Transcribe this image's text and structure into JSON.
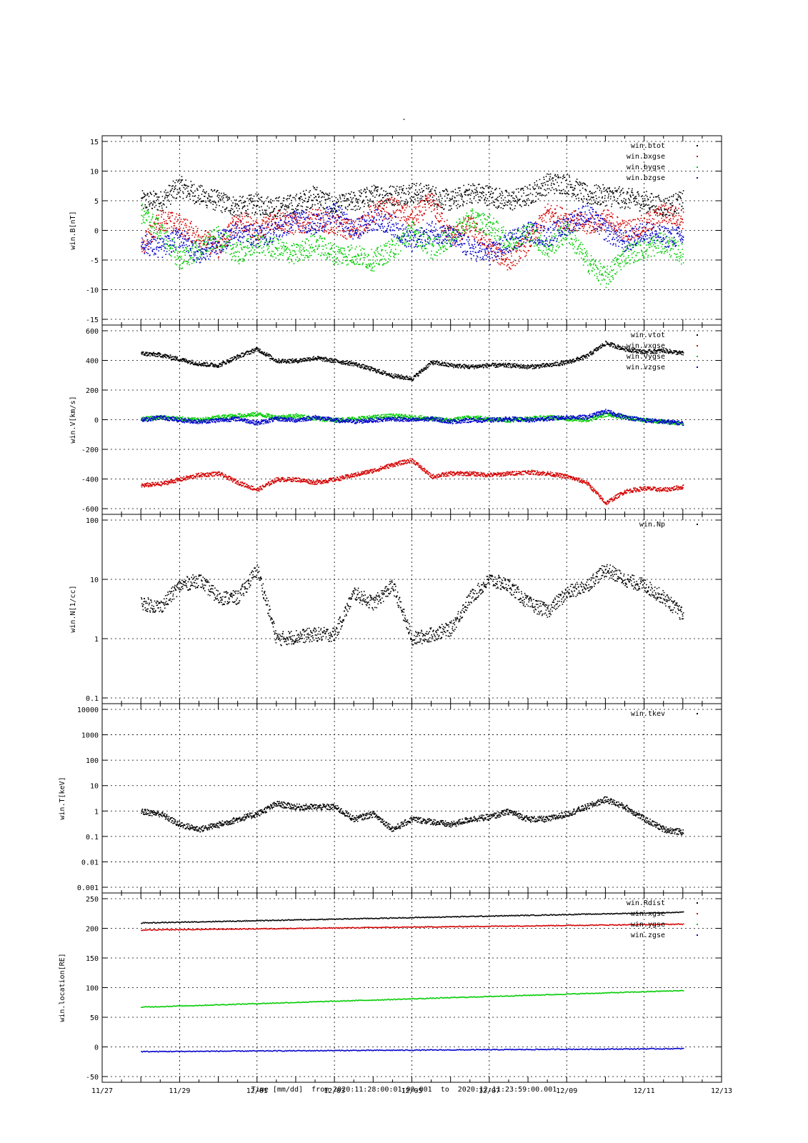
{
  "page_title": "-",
  "footer": {
    "xlabel": "Time [mm/dd]",
    "from_label": "from",
    "from_value": "2020:11:28:00:01:00.001",
    "to_label": "to",
    "to_value": "2020:12:11:23:59:00.001"
  },
  "colors": {
    "black": "#000000",
    "red": "#d40000",
    "green": "#00cc00",
    "blue": "#0000cc"
  },
  "chart_data": [
    {
      "type": "scatter",
      "ylabel": "win.B[nT]",
      "yscale": "linear",
      "ylim": [
        -15,
        15
      ],
      "yticks": [
        -15,
        -10,
        -5,
        0,
        5,
        10,
        15
      ],
      "legend_position": "top-right",
      "grid": true,
      "series": [
        {
          "name": "win.btot",
          "color": "black",
          "x": [
            0.0,
            0.5,
            1.0,
            1.5,
            2.0,
            2.5,
            3.0,
            3.5,
            4.0,
            4.5,
            5.0,
            5.5,
            6.0,
            6.5,
            7.0,
            7.5,
            8.0,
            8.5,
            9.0,
            9.5,
            10.0,
            10.5,
            11.0,
            11.5,
            12.0,
            12.5,
            13.0,
            13.5,
            14.0
          ],
          "y": [
            5,
            5,
            7.5,
            6,
            5,
            4,
            4.5,
            4,
            4.5,
            6,
            4,
            5,
            6,
            6,
            6.5,
            6,
            5,
            6.5,
            6,
            5,
            6,
            8,
            8,
            6,
            6,
            5.5,
            5,
            4,
            5
          ]
        },
        {
          "name": "win.bxgse",
          "color": "red",
          "x": [
            0.0,
            0.5,
            1.0,
            1.5,
            2.0,
            2.5,
            3.0,
            3.5,
            4.0,
            4.5,
            5.0,
            5.5,
            6.0,
            6.5,
            7.0,
            7.5,
            8.0,
            8.5,
            9.0,
            9.5,
            10.0,
            10.5,
            11.0,
            11.5,
            12.0,
            12.5,
            13.0,
            13.5,
            14.0
          ],
          "y": [
            -3,
            2,
            1,
            -1,
            -3,
            2,
            0,
            2,
            1,
            2,
            1,
            0,
            3,
            4,
            2,
            5,
            -1,
            1,
            -3,
            -5,
            -2,
            3,
            2,
            1,
            2,
            0,
            1,
            3,
            2
          ]
        },
        {
          "name": "win.bygse",
          "color": "green",
          "x": [
            0.0,
            0.5,
            1.0,
            1.5,
            2.0,
            2.5,
            3.0,
            3.5,
            4.0,
            4.5,
            5.0,
            5.5,
            6.0,
            6.5,
            7.0,
            7.5,
            8.0,
            8.5,
            9.0,
            9.5,
            10.0,
            10.5,
            11.0,
            11.5,
            12.0,
            12.5,
            13.0,
            13.5,
            14.0
          ],
          "y": [
            3,
            0,
            -5,
            -3,
            -1,
            -4,
            -2,
            -3,
            -4,
            -2,
            -4,
            -4,
            -5,
            -3,
            0,
            -3,
            -1,
            2,
            1,
            -2,
            0,
            -3,
            0,
            -5,
            -8,
            -4,
            -3,
            -2,
            -4
          ]
        },
        {
          "name": "win.bzgse",
          "color": "blue",
          "x": [
            0.0,
            0.5,
            1.0,
            1.5,
            2.0,
            2.5,
            3.0,
            3.5,
            4.0,
            4.5,
            5.0,
            5.5,
            6.0,
            6.5,
            7.0,
            7.5,
            8.0,
            8.5,
            9.0,
            9.5,
            10.0,
            10.5,
            11.0,
            11.5,
            12.0,
            12.5,
            13.0,
            13.5,
            14.0
          ],
          "y": [
            -2,
            -3,
            -1,
            -4,
            -2,
            0,
            -1,
            0,
            2,
            1,
            3,
            0,
            2,
            1,
            -2,
            0,
            -1,
            -3,
            -4,
            -2,
            0,
            -1,
            1,
            3,
            0,
            -2,
            0,
            -1,
            -1
          ]
        }
      ]
    },
    {
      "type": "scatter",
      "ylabel": "win.V[km/s]",
      "yscale": "linear",
      "ylim": [
        -600,
        600
      ],
      "yticks": [
        -600,
        -400,
        -200,
        0,
        200,
        400,
        600
      ],
      "legend_position": "top-right",
      "grid": true,
      "series": [
        {
          "name": "win.vtot",
          "color": "black",
          "x": [
            0.0,
            0.5,
            1.0,
            1.5,
            2.0,
            2.5,
            3.0,
            3.5,
            4.0,
            4.5,
            5.0,
            5.5,
            6.0,
            6.5,
            7.0,
            7.5,
            8.0,
            8.5,
            9.0,
            9.5,
            10.0,
            10.5,
            11.0,
            11.5,
            12.0,
            12.5,
            13.0,
            13.5,
            14.0
          ],
          "y": [
            450,
            440,
            410,
            380,
            370,
            430,
            480,
            400,
            400,
            420,
            400,
            380,
            340,
            300,
            280,
            390,
            370,
            360,
            370,
            370,
            360,
            370,
            390,
            430,
            520,
            480,
            460,
            470,
            450
          ]
        },
        {
          "name": "win.vxgse",
          "color": "red",
          "x": [
            0.0,
            0.5,
            1.0,
            1.5,
            2.0,
            2.5,
            3.0,
            3.5,
            4.0,
            4.5,
            5.0,
            5.5,
            6.0,
            6.5,
            7.0,
            7.5,
            8.0,
            8.5,
            9.0,
            9.5,
            10.0,
            10.5,
            11.0,
            11.5,
            12.0,
            12.5,
            13.0,
            13.5,
            14.0
          ],
          "y": [
            -440,
            -430,
            -400,
            -370,
            -360,
            -420,
            -470,
            -400,
            -400,
            -420,
            -400,
            -370,
            -340,
            -300,
            -270,
            -380,
            -360,
            -360,
            -370,
            -360,
            -350,
            -360,
            -380,
            -420,
            -560,
            -480,
            -460,
            -470,
            -450
          ]
        },
        {
          "name": "win.vygse",
          "color": "green",
          "x": [
            0.0,
            0.5,
            1.0,
            1.5,
            2.0,
            2.5,
            3.0,
            3.5,
            4.0,
            4.5,
            5.0,
            5.5,
            6.0,
            6.5,
            7.0,
            7.5,
            8.0,
            8.5,
            9.0,
            9.5,
            10.0,
            10.5,
            11.0,
            11.5,
            12.0,
            12.5,
            13.0,
            13.5,
            14.0
          ],
          "y": [
            10,
            20,
            10,
            0,
            20,
            30,
            40,
            20,
            30,
            10,
            0,
            10,
            20,
            30,
            20,
            10,
            0,
            20,
            10,
            0,
            10,
            20,
            10,
            0,
            40,
            20,
            0,
            -10,
            -20
          ]
        },
        {
          "name": "win.vzgse",
          "color": "blue",
          "x": [
            0.0,
            0.5,
            1.0,
            1.5,
            2.0,
            2.5,
            3.0,
            3.5,
            4.0,
            4.5,
            5.0,
            5.5,
            6.0,
            6.5,
            7.0,
            7.5,
            8.0,
            8.5,
            9.0,
            9.5,
            10.0,
            10.5,
            11.0,
            11.5,
            12.0,
            12.5,
            13.0,
            13.5,
            14.0
          ],
          "y": [
            0,
            20,
            0,
            -10,
            0,
            10,
            -20,
            10,
            0,
            20,
            0,
            -10,
            0,
            10,
            0,
            10,
            -10,
            0,
            0,
            10,
            0,
            10,
            20,
            20,
            60,
            20,
            0,
            -10,
            -20
          ]
        }
      ]
    },
    {
      "type": "scatter",
      "ylabel": "win.N[1/cc]",
      "yscale": "log",
      "ylim": [
        0.1,
        100
      ],
      "yticks": [
        0.1,
        1,
        10,
        100
      ],
      "ytick_labels": [
        "0.1",
        "1",
        "10",
        "100"
      ],
      "legend_position": "top-right",
      "grid": true,
      "series": [
        {
          "name": "win.Np",
          "color": "black",
          "x": [
            0.0,
            0.5,
            1.0,
            1.5,
            2.0,
            2.5,
            3.0,
            3.5,
            4.0,
            4.5,
            5.0,
            5.5,
            6.0,
            6.5,
            7.0,
            7.5,
            8.0,
            8.5,
            9.0,
            9.5,
            10.0,
            10.5,
            11.0,
            11.5,
            12.0,
            12.5,
            13.0,
            13.5,
            14.0
          ],
          "y": [
            4,
            3.5,
            8,
            10,
            5,
            5,
            15,
            1.0,
            1.1,
            1.2,
            1.2,
            6,
            4,
            8,
            1.0,
            1.2,
            1.5,
            5,
            10,
            8,
            4,
            3,
            6,
            8,
            15,
            10,
            8,
            5,
            2.5
          ]
        }
      ]
    },
    {
      "type": "scatter",
      "ylabel": "win.T[keV]",
      "yscale": "log",
      "ylim": [
        0.001,
        10000
      ],
      "yticks": [
        0.001,
        0.01,
        0.1,
        1,
        10,
        100,
        1000,
        10000
      ],
      "ytick_labels": [
        "0.001",
        "0.01",
        "0.1",
        "1",
        "10",
        "100",
        "1000",
        "10000"
      ],
      "legend_position": "top-right",
      "grid": true,
      "series": [
        {
          "name": "win.tkev",
          "color": "black",
          "x": [
            0.0,
            0.5,
            1.0,
            1.5,
            2.0,
            2.5,
            3.0,
            3.5,
            4.0,
            4.5,
            5.0,
            5.5,
            6.0,
            6.5,
            7.0,
            7.5,
            8.0,
            8.5,
            9.0,
            9.5,
            10.0,
            10.5,
            11.0,
            11.5,
            12.0,
            12.5,
            13.0,
            13.5,
            14.0
          ],
          "y": [
            1.0,
            0.8,
            0.3,
            0.2,
            0.3,
            0.5,
            0.8,
            2,
            1.5,
            1.5,
            1.5,
            0.5,
            0.8,
            0.2,
            0.5,
            0.4,
            0.3,
            0.5,
            0.6,
            1.0,
            0.5,
            0.5,
            0.8,
            1.5,
            3,
            1.5,
            0.5,
            0.2,
            0.15
          ]
        }
      ]
    },
    {
      "type": "scatter",
      "ylabel": "win.location[RE]",
      "yscale": "linear",
      "ylim": [
        -50,
        250
      ],
      "yticks": [
        -50,
        0,
        50,
        100,
        150,
        200,
        250
      ],
      "legend_position": "top-right",
      "grid": true,
      "series": [
        {
          "name": "win.Rdist",
          "color": "black",
          "x": [
            0,
            14
          ],
          "y": [
            210,
            228
          ]
        },
        {
          "name": "win.xgse",
          "color": "red",
          "x": [
            0,
            14
          ],
          "y": [
            198,
            208
          ]
        },
        {
          "name": "win.ygse",
          "color": "green",
          "x": [
            0,
            14
          ],
          "y": [
            68,
            96
          ]
        },
        {
          "name": "win.zgse",
          "color": "blue",
          "x": [
            0,
            14
          ],
          "y": [
            -7,
            -2
          ]
        }
      ]
    }
  ],
  "x_axis": {
    "x_unit": "days since 11/28 00:00",
    "xlim": [
      -1,
      15
    ],
    "ticks": [
      -1,
      1,
      3,
      5,
      7,
      9,
      11,
      13,
      15
    ],
    "tick_labels": [
      "11/27",
      "11/29",
      "12/01",
      "12/03",
      "12/05",
      "12/07",
      "12/09",
      "12/11",
      "12/13"
    ]
  }
}
